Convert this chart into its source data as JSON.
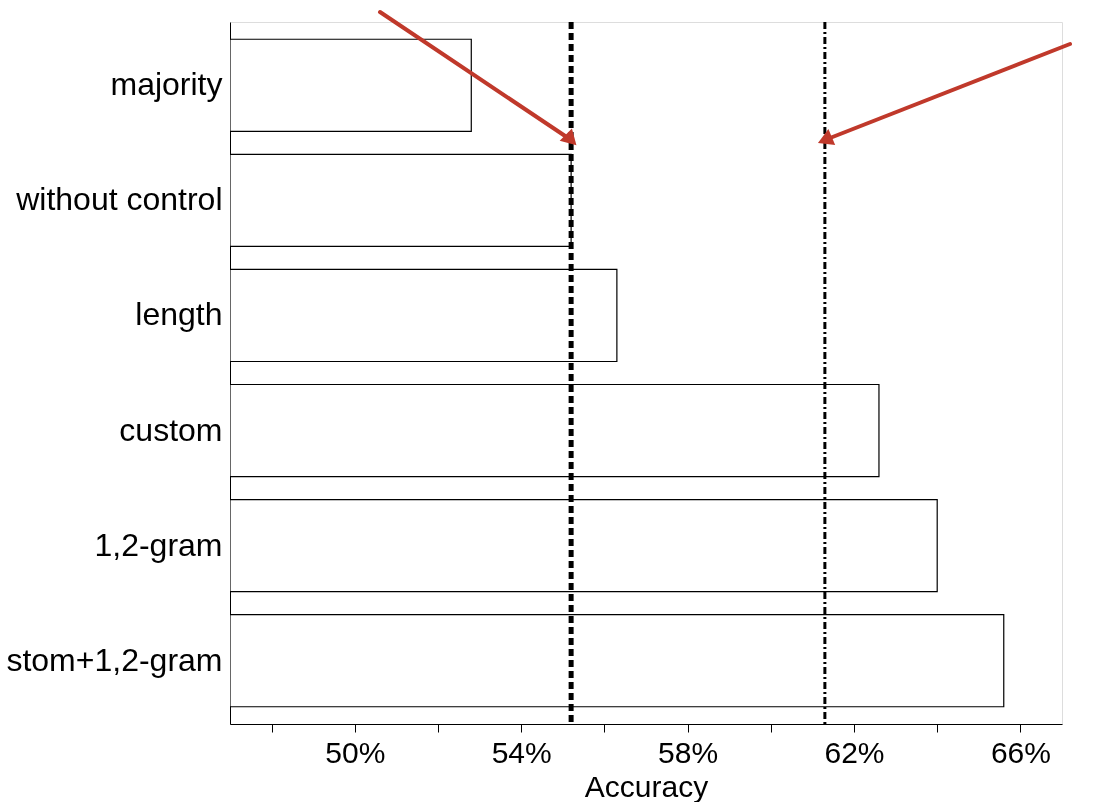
{
  "chart_data": {
    "type": "bar",
    "orientation": "horizontal",
    "xlabel": "Accuracy",
    "categories": [
      "majority",
      "without control",
      "length",
      "custom",
      "1,2-gram",
      "stom+1,2-gram"
    ],
    "values": [
      52.8,
      55.2,
      56.3,
      62.6,
      64.0,
      65.6
    ],
    "color": "#ffffff",
    "xlim": [
      47,
      67
    ],
    "xticks": [
      {
        "value": 48,
        "label": null
      },
      {
        "value": 50,
        "label": "50%"
      },
      {
        "value": 52,
        "label": null
      },
      {
        "value": 54,
        "label": "54%"
      },
      {
        "value": 56,
        "label": null
      },
      {
        "value": 58,
        "label": "58%"
      },
      {
        "value": 60,
        "label": null
      },
      {
        "value": 62,
        "label": "62%"
      },
      {
        "value": 64,
        "label": null
      },
      {
        "value": 66,
        "label": "66%"
      }
    ],
    "ref_lines": [
      {
        "axis": "x",
        "value": 55.2,
        "label": null,
        "color": "#000000",
        "line_style": "dashed"
      },
      {
        "axis": "x",
        "value": 61.3,
        "label": null,
        "color": "#000000",
        "line_style": "dashdot"
      }
    ],
    "grid": false
  }
}
